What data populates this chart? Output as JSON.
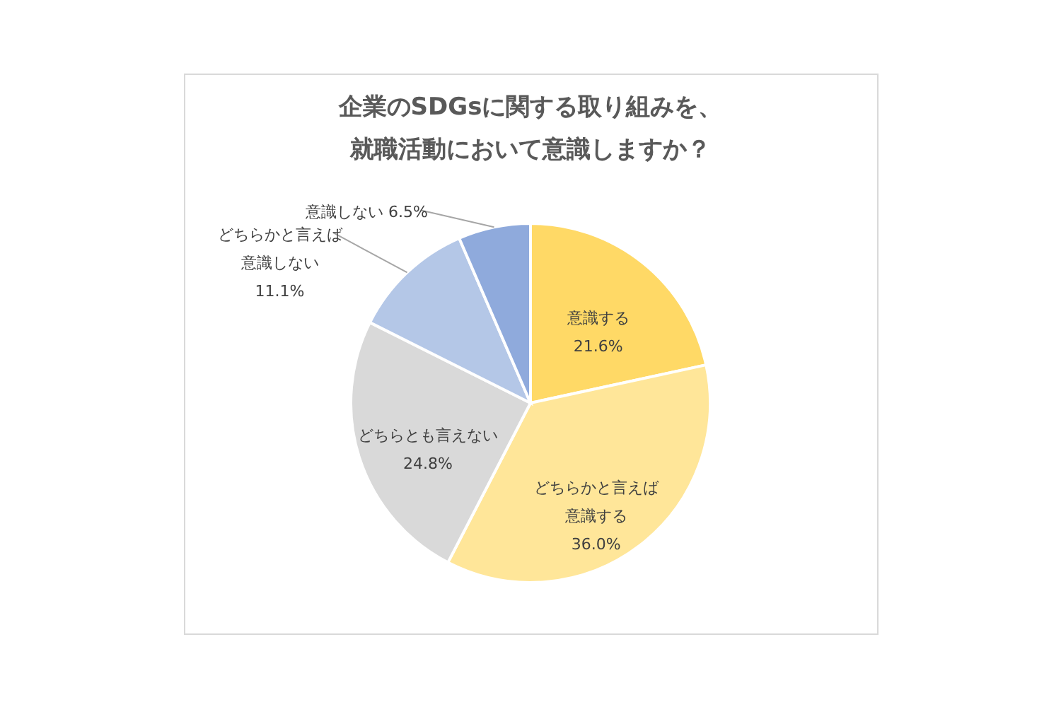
{
  "chart_data": {
    "type": "pie",
    "title": "企業のSDGsに関する取り組みを、就職活動において意識しますか？",
    "categories": [
      "意識する",
      "どちらかと言えば意識する",
      "どちらとも言えない",
      "どちらかと言えば意識しない",
      "意識しない"
    ],
    "values": [
      21.6,
      36.0,
      24.8,
      11.1,
      6.5
    ],
    "colors": [
      "#ffd966",
      "#ffe699",
      "#d9d9d9",
      "#b4c7e7",
      "#8faadc"
    ],
    "value_labels": [
      "21.6%",
      "36.0%",
      "24.8%",
      "11.1%",
      "6.5%"
    ],
    "legend": false
  }
}
